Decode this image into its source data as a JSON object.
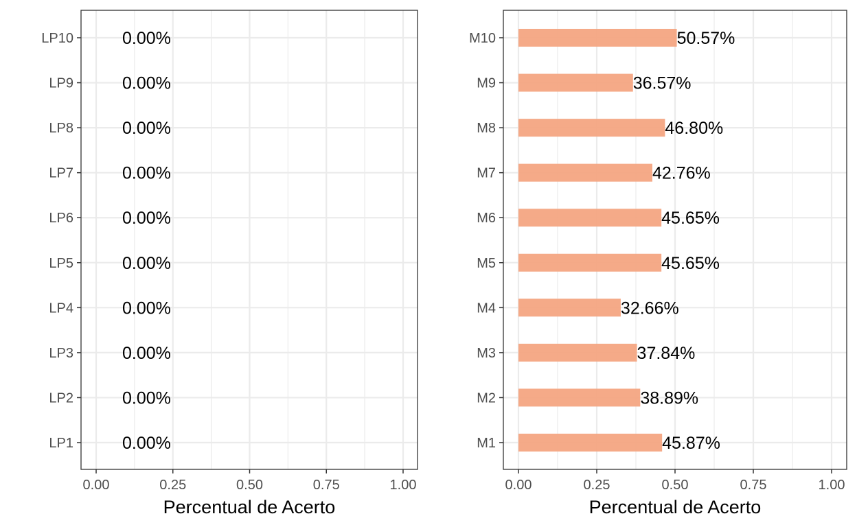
{
  "chart_data": [
    {
      "type": "bar",
      "orientation": "horizontal",
      "categories": [
        "LP1",
        "LP2",
        "LP3",
        "LP4",
        "LP5",
        "LP6",
        "LP7",
        "LP8",
        "LP9",
        "LP10"
      ],
      "values": [
        0,
        0,
        0,
        0,
        0,
        0,
        0,
        0,
        0,
        0
      ],
      "data_labels": [
        "0.00%",
        "0.00%",
        "0.00%",
        "0.00%",
        "0.00%",
        "0.00%",
        "0.00%",
        "0.00%",
        "0.00%",
        "0.00%"
      ],
      "xlabel": "Percentual de Acerto",
      "ylabel": "",
      "xlim": [
        0,
        1
      ],
      "xticks": [
        "0.00",
        "0.25",
        "0.50",
        "0.75",
        "1.00"
      ],
      "grid": true,
      "bar_color": "#F4A582"
    },
    {
      "type": "bar",
      "orientation": "horizontal",
      "categories": [
        "M1",
        "M2",
        "M3",
        "M4",
        "M5",
        "M6",
        "M7",
        "M8",
        "M9",
        "M10"
      ],
      "values": [
        0.4587,
        0.3889,
        0.3784,
        0.3266,
        0.4565,
        0.4565,
        0.4276,
        0.468,
        0.3657,
        0.5057
      ],
      "data_labels": [
        "45.87%",
        "38.89%",
        "37.84%",
        "32.66%",
        "45.65%",
        "45.65%",
        "42.76%",
        "46.80%",
        "36.57%",
        "50.57%"
      ],
      "xlabel": "Percentual de Acerto",
      "ylabel": "",
      "xlim": [
        0,
        1
      ],
      "xticks": [
        "0.00",
        "0.25",
        "0.50",
        "0.75",
        "1.00"
      ],
      "grid": true,
      "bar_color": "#F4A582"
    }
  ]
}
